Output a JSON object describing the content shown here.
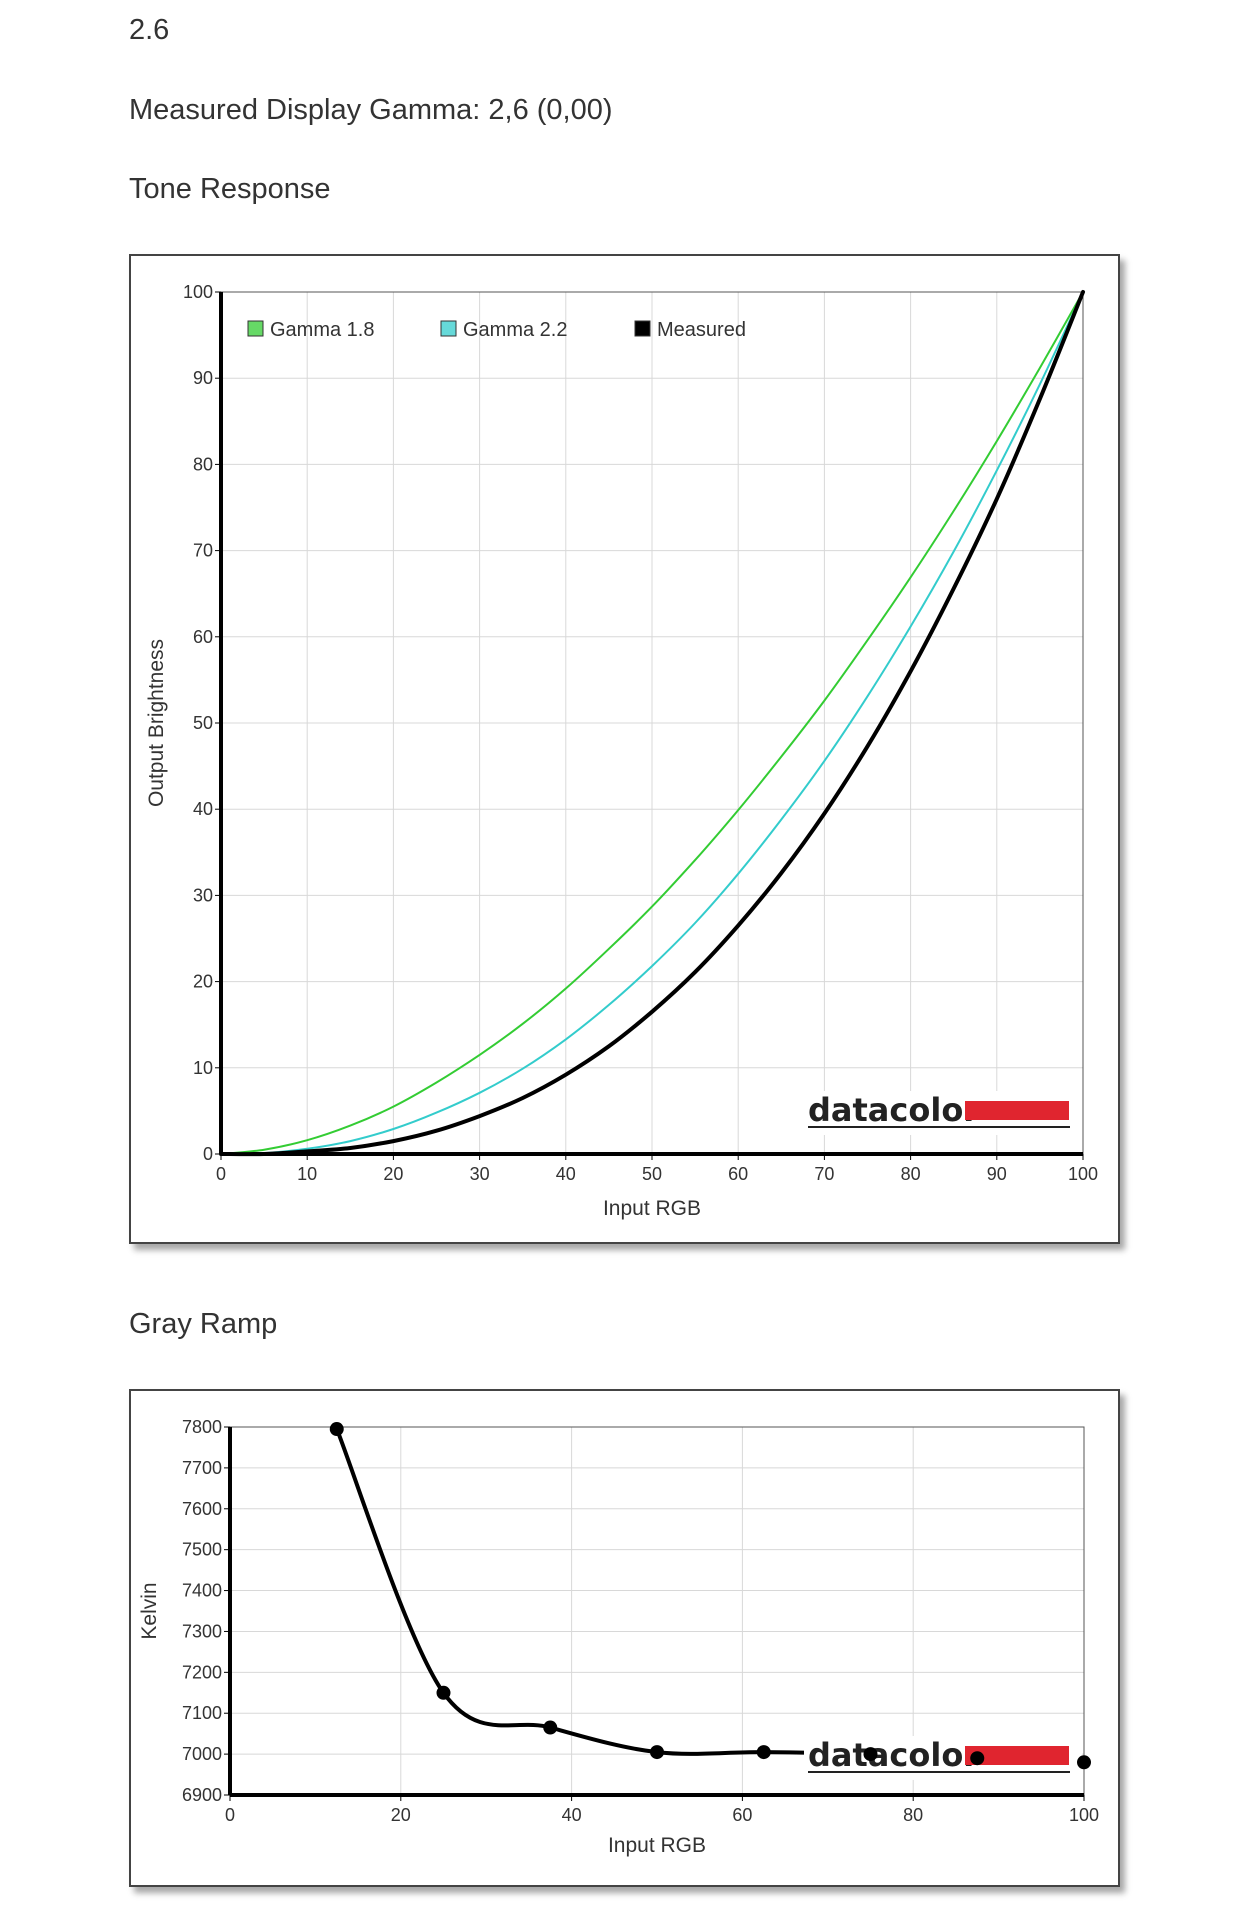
{
  "header": {
    "value": "2.6",
    "measured_gamma": "Measured Display Gamma: 2,6 (0,00)",
    "tone_response_heading": "Tone Response",
    "gray_ramp_heading": "Gray Ramp"
  },
  "logo": {
    "text": "datacolor",
    "bar_color": "#e0252f"
  },
  "chart_data": [
    {
      "type": "line",
      "xlabel": "Input RGB",
      "ylabel": "Output Brightness",
      "xlim": [
        0,
        100
      ],
      "ylim": [
        0,
        100
      ],
      "x_ticks": [
        0,
        10,
        20,
        30,
        40,
        50,
        60,
        70,
        80,
        90,
        100
      ],
      "y_ticks": [
        0,
        10,
        20,
        30,
        40,
        50,
        60,
        70,
        80,
        90,
        100
      ],
      "grid": true,
      "legend": "top-left",
      "series": [
        {
          "name": "Gamma 1.8",
          "color": "#33cc33",
          "x": [
            0,
            5,
            10,
            15,
            20,
            25,
            30,
            35,
            40,
            45,
            50,
            55,
            60,
            65,
            70,
            75,
            80,
            85,
            90,
            95,
            100
          ],
          "y": [
            0,
            0.5,
            1.6,
            3.3,
            5.5,
            8.3,
            11.5,
            15.1,
            19.2,
            23.8,
            28.7,
            34.1,
            39.9,
            46.1,
            52.6,
            59.6,
            66.9,
            74.6,
            82.7,
            91.2,
            100
          ]
        },
        {
          "name": "Gamma 2.2",
          "color": "#33cccc",
          "x": [
            0,
            5,
            10,
            15,
            20,
            25,
            30,
            35,
            40,
            45,
            50,
            55,
            60,
            65,
            70,
            75,
            80,
            85,
            90,
            95,
            100
          ],
          "y": [
            0,
            0.1,
            0.6,
            1.5,
            2.9,
            4.8,
            7.1,
            9.9,
            13.3,
            17.3,
            21.8,
            26.8,
            32.5,
            38.8,
            45.6,
            53.1,
            61.2,
            69.9,
            79.3,
            89.3,
            100
          ]
        },
        {
          "name": "Measured",
          "color": "#000000",
          "x": [
            0,
            5,
            10,
            15,
            20,
            25,
            30,
            35,
            40,
            45,
            50,
            55,
            60,
            65,
            70,
            75,
            80,
            85,
            90,
            95,
            100
          ],
          "y": [
            0,
            0,
            0.3,
            0.7,
            1.5,
            2.7,
            4.4,
            6.5,
            9.2,
            12.5,
            16.5,
            21.1,
            26.5,
            32.6,
            39.5,
            47.3,
            56.0,
            65.6,
            76.0,
            87.6,
            100
          ]
        }
      ]
    },
    {
      "type": "line",
      "xlabel": "Input RGB",
      "ylabel": "Kelvin",
      "xlim": [
        0,
        100
      ],
      "ylim": [
        6900,
        7800
      ],
      "x_ticks": [
        0,
        20,
        40,
        60,
        80,
        100
      ],
      "y_ticks": [
        6900,
        7000,
        7100,
        7200,
        7300,
        7400,
        7500,
        7600,
        7700,
        7800
      ],
      "grid": true,
      "series": [
        {
          "color": "#000000",
          "x": [
            12.5,
            25,
            37.5,
            50,
            62.5,
            75,
            87.5,
            100
          ],
          "y": [
            7795,
            7150,
            7065,
            7005,
            7005,
            7000,
            6990,
            6980
          ]
        }
      ]
    }
  ]
}
